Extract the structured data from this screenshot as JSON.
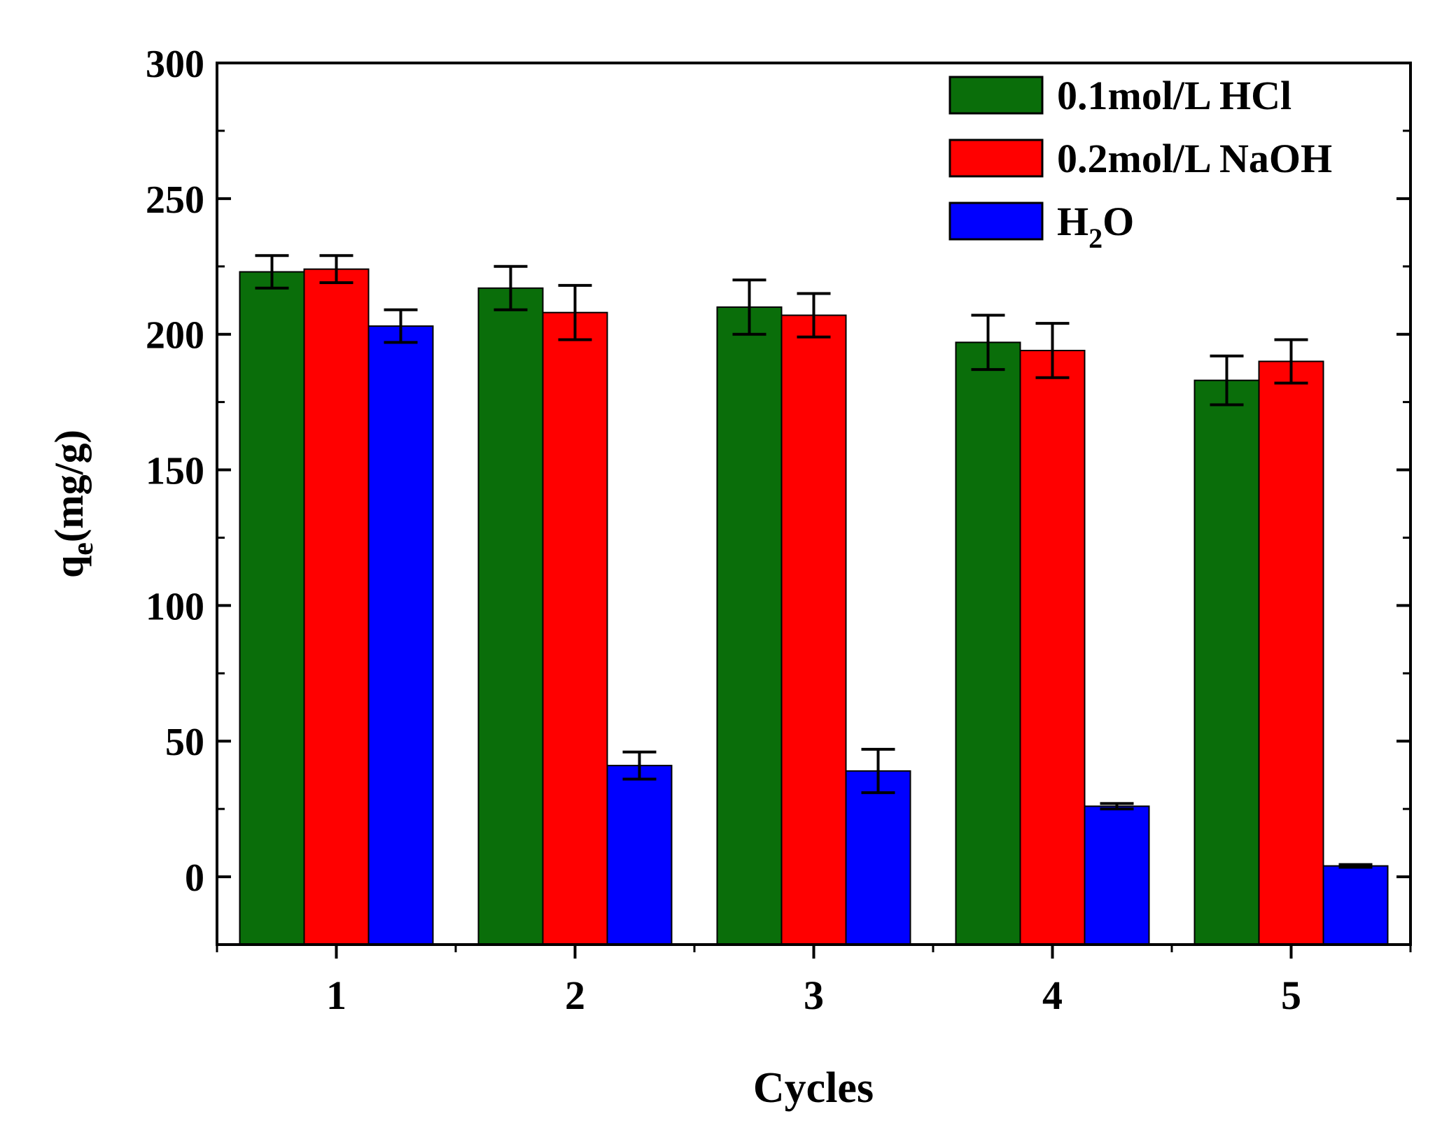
{
  "chart_data": {
    "type": "bar",
    "title": "",
    "xlabel": "Cycles",
    "ylabel_main": "q",
    "ylabel_sub": "e",
    "ylabel_rest": "(mg/g)",
    "categories": [
      "1",
      "2",
      "3",
      "4",
      "5"
    ],
    "ylim": [
      -25,
      300
    ],
    "yticks": [
      "0",
      "50",
      "100",
      "150",
      "200",
      "250",
      "300"
    ],
    "series": [
      {
        "name": "0.1mol/L HCl",
        "color": "#0a6e0a",
        "values": [
          223,
          217,
          210,
          197,
          183
        ],
        "errors": [
          6,
          8,
          10,
          10,
          9
        ]
      },
      {
        "name": "0.2mol/L NaOH",
        "color": "#ff0000",
        "values": [
          224,
          208,
          207,
          194,
          190
        ],
        "errors": [
          5,
          10,
          8,
          10,
          8
        ]
      },
      {
        "name_main": "H",
        "name_sub": "2",
        "name_rest": "O",
        "color": "#0000ff",
        "values": [
          203,
          41,
          39,
          26,
          4
        ],
        "errors": [
          6,
          5,
          8,
          1,
          0.5
        ]
      }
    ],
    "legend_position": "top-right",
    "grid": false
  }
}
